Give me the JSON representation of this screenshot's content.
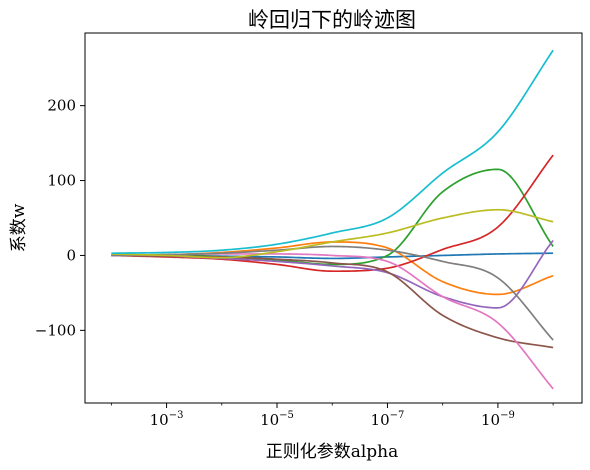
{
  "chart_data": {
    "type": "line",
    "title": "岭回归下的岭迹图",
    "xlabel": "正则化参数alpha",
    "ylabel": "系数w",
    "x_scale": "log",
    "x_reversed": true,
    "xlim": [
      0.03,
      3e-11
    ],
    "ylim": [
      -197,
      297
    ],
    "x_ticks": [
      {
        "value": 0.001,
        "base": "10",
        "exp": "−3"
      },
      {
        "value": 1e-05,
        "base": "10",
        "exp": "−5"
      },
      {
        "value": 1e-07,
        "base": "10",
        "exp": "−7"
      },
      {
        "value": 1e-09,
        "base": "10",
        "exp": "−9"
      }
    ],
    "y_ticks": [
      {
        "value": 200,
        "label": "200"
      },
      {
        "value": 100,
        "label": "100"
      },
      {
        "value": 0,
        "label": "0"
      },
      {
        "value": -100,
        "label": "−100"
      }
    ],
    "x": [
      0.01,
      0.001,
      0.0001,
      1e-05,
      1e-06,
      1e-07,
      1e-08,
      1e-09,
      1e-10
    ],
    "series": [
      {
        "color": "#1f77b4",
        "values": [
          0,
          0,
          -1,
          -2,
          -4,
          -2,
          0,
          2,
          3
        ]
      },
      {
        "color": "#ff7f0e",
        "values": [
          0,
          1,
          4,
          10,
          18,
          10,
          -35,
          -52,
          -27
        ]
      },
      {
        "color": "#2ca02c",
        "values": [
          0,
          1,
          -2,
          -6,
          -12,
          0,
          85,
          115,
          12
        ]
      },
      {
        "color": "#d62728",
        "values": [
          0,
          -2,
          -5,
          -12,
          -21,
          -17,
          8,
          38,
          134
        ]
      },
      {
        "color": "#9467bd",
        "values": [
          0,
          -1,
          -4,
          -8,
          -14,
          -23,
          -55,
          -70,
          20
        ]
      },
      {
        "color": "#8c564b",
        "values": [
          0,
          -1,
          -2,
          -5,
          -10,
          -22,
          -80,
          -110,
          -123
        ]
      },
      {
        "color": "#e377c2",
        "values": [
          0,
          1,
          2,
          2,
          0,
          -8,
          -55,
          -90,
          -178
        ]
      },
      {
        "color": "#7f7f7f",
        "values": [
          0,
          1,
          3,
          7,
          12,
          7,
          -8,
          -30,
          -113
        ]
      },
      {
        "color": "#bcbd22",
        "values": [
          2,
          0,
          -3,
          5,
          18,
          30,
          50,
          61,
          45
        ]
      },
      {
        "color": "#17becf",
        "values": [
          3,
          4,
          7,
          15,
          30,
          50,
          110,
          165,
          274
        ]
      }
    ]
  }
}
